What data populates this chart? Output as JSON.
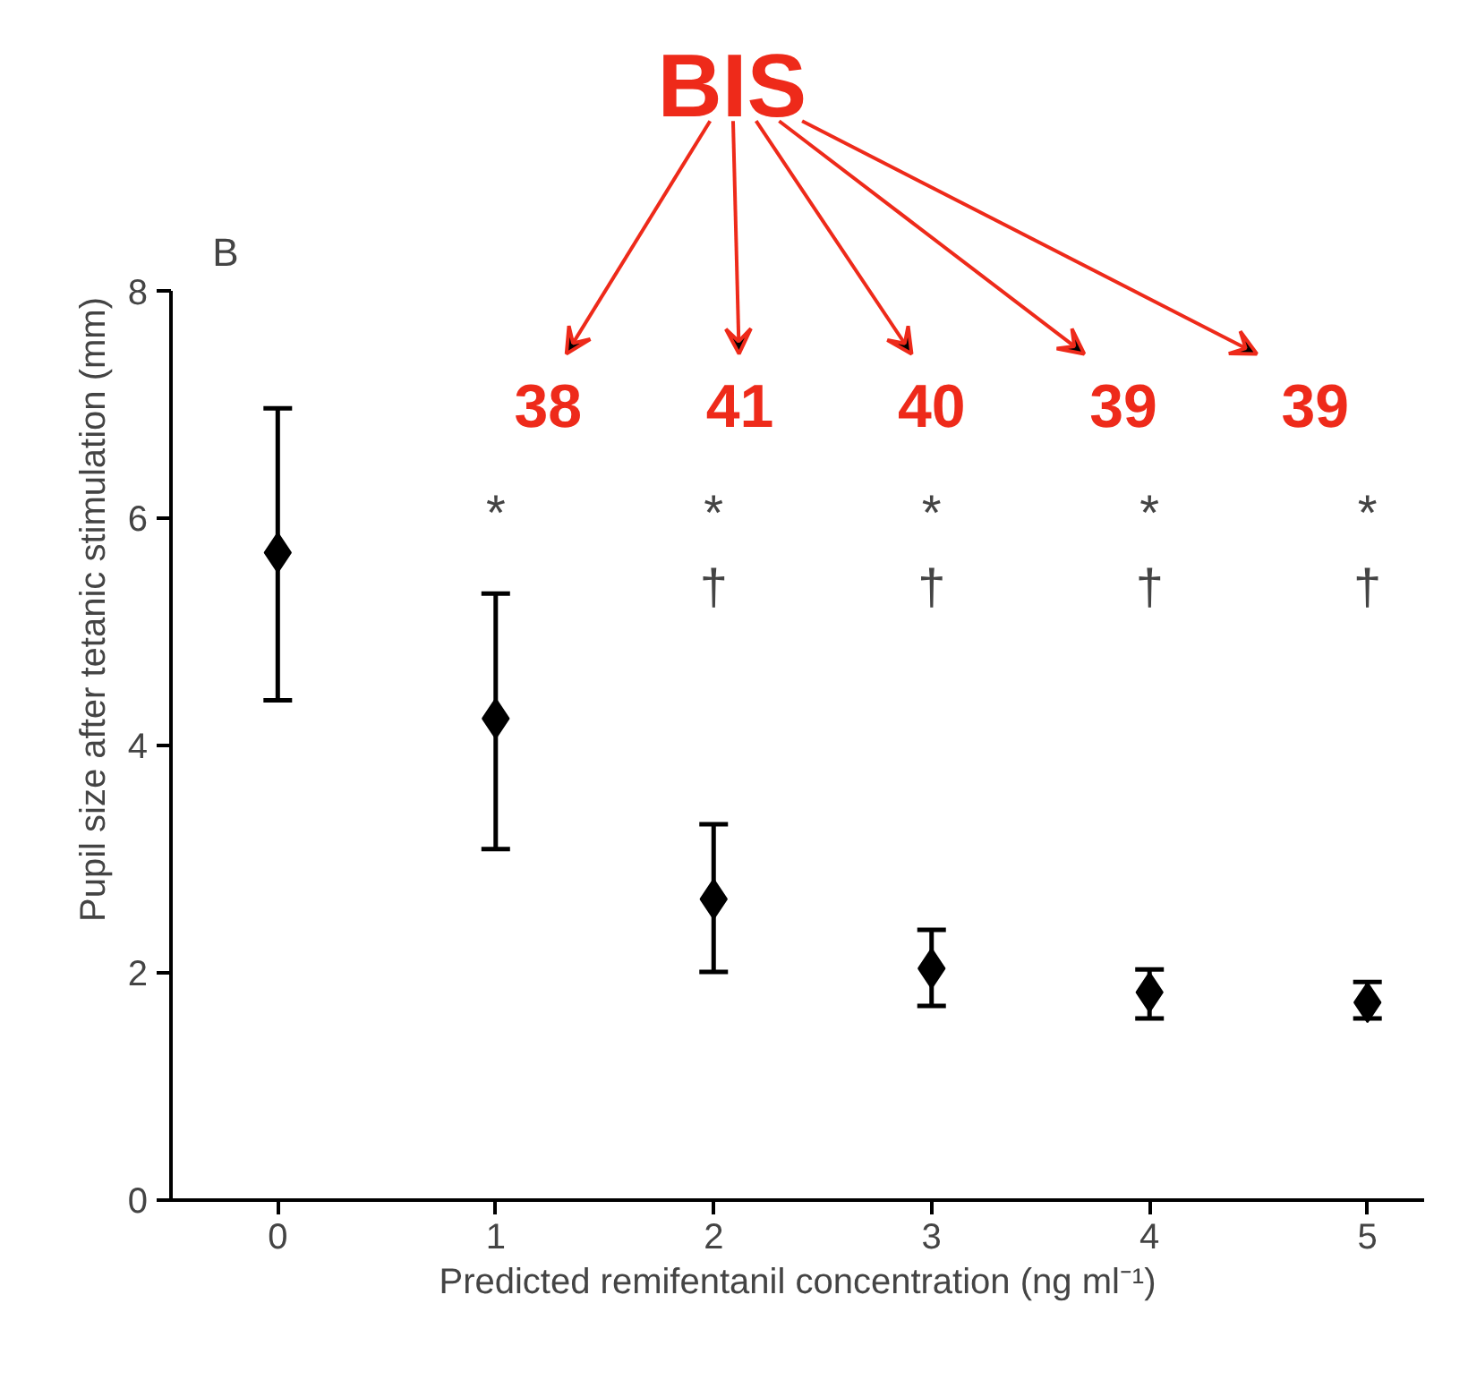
{
  "chart_data": {
    "type": "scatter",
    "xlabel": "Predicted remifentanil concentration (ng ml⁻¹)",
    "ylabel": "Pupil size after tetanic stimulation (mm)",
    "x": [
      0,
      1,
      2,
      3,
      4,
      5
    ],
    "series": [
      {
        "color": "#000000",
        "values": [
          5.7,
          4.24,
          2.65,
          2.04,
          1.83,
          1.74
        ],
        "errors": [
          [
            4.4,
            6.97
          ],
          [
            3.09,
            5.34
          ],
          [
            2.01,
            3.31
          ],
          [
            1.71,
            2.38
          ],
          [
            1.6,
            2.03
          ],
          [
            1.6,
            1.92
          ]
        ]
      }
    ],
    "marker": "diamond",
    "grid": false,
    "xlim": [
      -0.49,
      5.26
    ],
    "xticks": [
      0,
      1,
      2,
      3,
      4,
      5
    ],
    "ylim": [
      0,
      8
    ],
    "yticks": [
      0,
      2,
      4,
      6,
      8
    ],
    "annotations": [
      "B",
      "*",
      "*",
      "*",
      "*",
      "*",
      "†",
      "†",
      "†",
      "†",
      "BIS",
      "38",
      "41",
      "40",
      "39",
      "39"
    ]
  }
}
